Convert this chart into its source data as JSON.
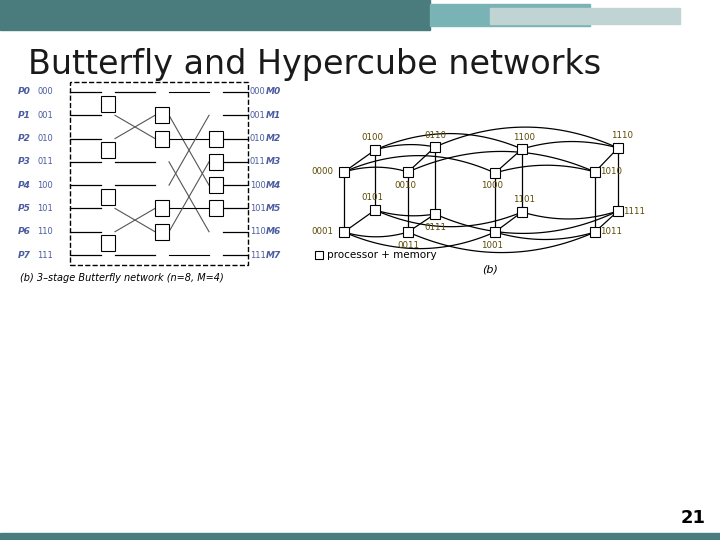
{
  "title": "Butterfly and Hypercube networks",
  "slide_number": "21",
  "bg_color": "#ffffff",
  "title_color": "#1a1a2e",
  "title_fontsize": 24,
  "label_color": "#4a5ba0",
  "hc_label_color": "#5a4800",
  "header_teal_dark": "#4a7c7e",
  "header_teal_light": "#7ab3b5",
  "header_gray": "#c0d4d4",
  "butterfly_caption": "(b) 3–stage Butterfly network (n=8, M=4)",
  "hc_caption": "(b)",
  "hc_legend": "processor + memory",
  "p_labels": [
    "P0",
    "P1",
    "P2",
    "P3",
    "P4",
    "P5",
    "P6",
    "P7"
  ],
  "p_bits": [
    "000",
    "001",
    "010",
    "011",
    "100",
    "101",
    "110",
    "111"
  ],
  "m_bits": [
    "000",
    "001",
    "010",
    "011",
    "100",
    "101",
    "110",
    "111"
  ],
  "m_labels": [
    "M0",
    "M1",
    "M2",
    "M3",
    "M4",
    "M5",
    "M6",
    "M7"
  ]
}
